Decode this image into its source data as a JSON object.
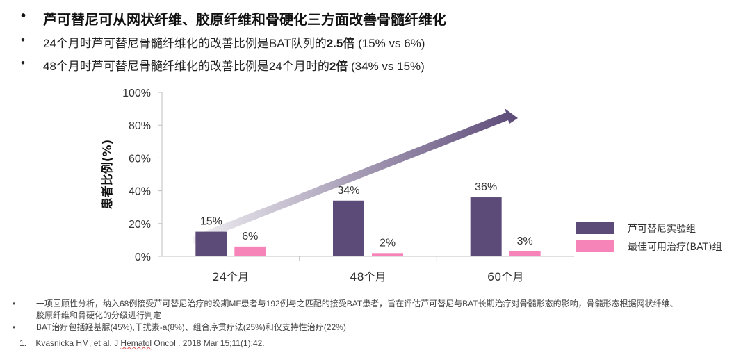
{
  "bullets": {
    "b1": "芦可替尼可从网状纤维、胶原纤维和骨硬化三方面改善骨髓纤维化",
    "b2_pre": "24个月时芦可替尼骨髓纤维化的改善比例是BAT队列的",
    "b2_bold": "2.5倍",
    "b2_post": " (15% vs 6%)",
    "b3_pre": "48个月时芦可替尼骨髓纤维化的改善比例是24个月时的",
    "b3_bold": "2倍",
    "b3_post": " (34% vs 15%)"
  },
  "chart_data": {
    "type": "bar",
    "categories": [
      "24个月",
      "48个月",
      "60个月"
    ],
    "series": [
      {
        "name": "芦可替尼实验组",
        "values": [
          15,
          34,
          36
        ],
        "labels": [
          "15%",
          "34%",
          "36%"
        ],
        "color": "#5c4a78"
      },
      {
        "name": "最佳可用治疗(BAT)组",
        "values": [
          6,
          2,
          3
        ],
        "labels": [
          "6%",
          "2%",
          "3%"
        ],
        "color": "#f784b8"
      }
    ],
    "ylabel": "患者比例(%)",
    "ylim": [
      0,
      100
    ],
    "yticks": [
      "0%",
      "20%",
      "40%",
      "60%",
      "80%",
      "100%"
    ],
    "legend": "right",
    "grid": false
  },
  "footnotes": {
    "f1a": "一项回顾性分析，纳入68例接受芦可替尼治疗的晚期MF患者与192例与之匹配的接受BAT患者，旨在评估芦可替尼与BAT长期治疗对骨髓形态的影响，骨髓形态根据网状纤维、",
    "f1b": "胶原纤维和骨硬化的分级进行判定",
    "f2": "BAT治疗包括羟基脲(45%),干扰素-a(8%)、组合序贯疗法(25%)和仅支持性治疗(22%)",
    "bullet_dot": "•"
  },
  "reference": {
    "number": "1.",
    "pre": "Kvasnicka HM, et al. J ",
    "journal_underlined": "Hematol",
    "post": " Oncol . 2018 Mar 15;11(1):42."
  },
  "bullet_marker": "•"
}
